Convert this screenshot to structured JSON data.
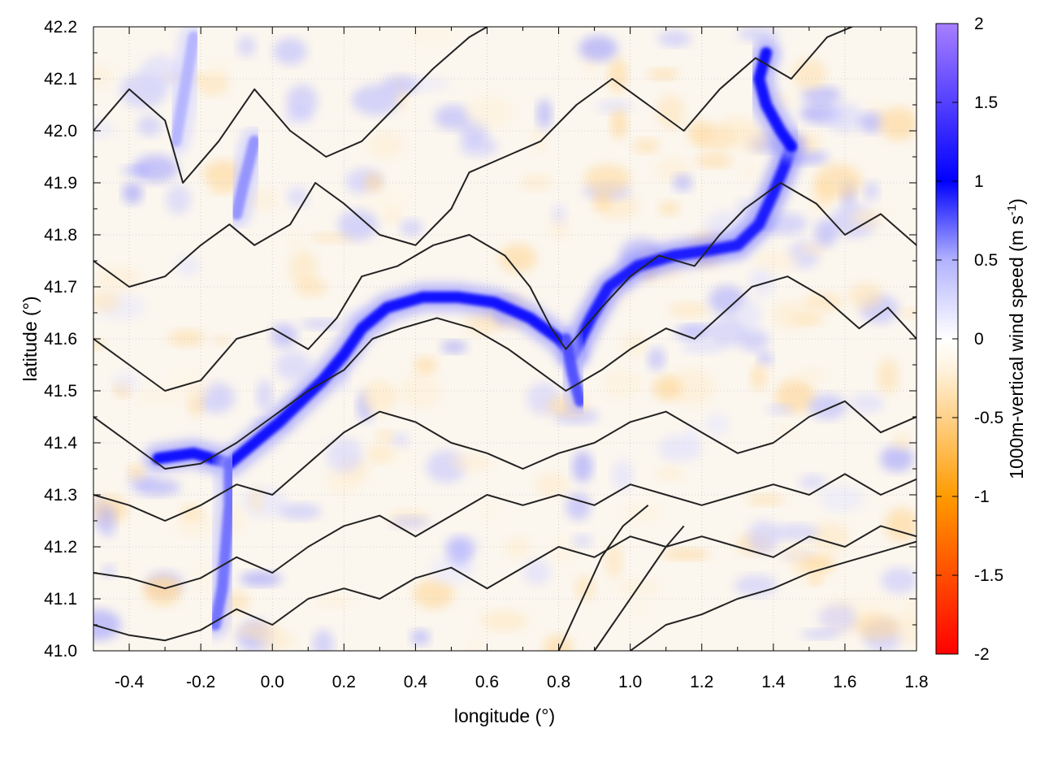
{
  "chart_data": {
    "type": "heatmap",
    "xlabel": "longitude (°)",
    "ylabel": "latitude (°)",
    "xlim": [
      -0.5,
      1.8
    ],
    "ylim": [
      41.0,
      42.2
    ],
    "xticks": [
      -0.4,
      -0.2,
      0.0,
      0.2,
      0.4,
      0.6,
      0.8,
      1.0,
      1.2,
      1.4,
      1.6,
      1.8
    ],
    "xtick_labels": [
      "-0.4",
      "-0.2",
      "0.0",
      "0.2",
      "0.4",
      "0.6",
      "0.8",
      "1.0",
      "1.2",
      "1.4",
      "1.6",
      "1.8"
    ],
    "yticks": [
      41.0,
      41.1,
      41.2,
      41.3,
      41.4,
      41.5,
      41.6,
      41.7,
      41.8,
      41.9,
      42.0,
      42.1,
      42.2
    ],
    "ytick_labels": [
      "41.0",
      "41.1",
      "41.2",
      "41.3",
      "41.4",
      "41.5",
      "41.6",
      "41.7",
      "41.8",
      "41.9",
      "42.0",
      "42.1",
      "42.2"
    ],
    "grid": true,
    "colorbar": {
      "label": "1000m-vertical wind speed (m s",
      "label_superscript": "-1",
      "label_suffix": ")",
      "range": [
        -2,
        2
      ],
      "ticks": [
        2,
        1.5,
        1,
        0.5,
        0,
        -0.5,
        -1,
        -1.5,
        -2
      ],
      "tick_labels": [
        "2",
        "1.5",
        "1",
        "0.5",
        "0",
        "-0.5",
        "-1",
        "-1.5",
        "-2"
      ],
      "colors": {
        "min": "#ff0000",
        "low": "#ff9b00",
        "near_zero_neg": "#fff2dc",
        "zero": "#ffffff",
        "mid": "#b2b2ff",
        "high": "#0000ff",
        "max": "#a77fff"
      }
    },
    "wind_bands": [
      {
        "name": "band-main-west",
        "value": 1.0,
        "points": [
          [
            -0.32,
            41.37
          ],
          [
            -0.22,
            41.38
          ],
          [
            -0.12,
            41.36
          ],
          [
            -0.05,
            41.4
          ],
          [
            0.02,
            41.44
          ],
          [
            0.08,
            41.48
          ],
          [
            0.14,
            41.52
          ],
          [
            0.2,
            41.57
          ],
          [
            0.25,
            41.62
          ],
          [
            0.32,
            41.66
          ],
          [
            0.42,
            41.68
          ],
          [
            0.52,
            41.68
          ],
          [
            0.62,
            41.67
          ],
          [
            0.72,
            41.64
          ],
          [
            0.8,
            41.6
          ],
          [
            0.84,
            41.57
          ]
        ]
      },
      {
        "name": "band-main-east",
        "value": 1.1,
        "points": [
          [
            0.84,
            41.57
          ],
          [
            0.89,
            41.64
          ],
          [
            0.94,
            41.7
          ],
          [
            1.02,
            41.74
          ],
          [
            1.12,
            41.76
          ],
          [
            1.22,
            41.77
          ],
          [
            1.3,
            41.78
          ],
          [
            1.36,
            41.82
          ],
          [
            1.4,
            41.88
          ],
          [
            1.43,
            41.93
          ],
          [
            1.45,
            41.97
          ]
        ]
      },
      {
        "name": "band-north-east",
        "value": 1.0,
        "points": [
          [
            1.45,
            41.97
          ],
          [
            1.42,
            42.0
          ],
          [
            1.38,
            42.05
          ],
          [
            1.36,
            42.1
          ],
          [
            1.38,
            42.15
          ]
        ]
      },
      {
        "name": "band-south-spur",
        "value": 0.8,
        "points": [
          [
            0.82,
            41.6
          ],
          [
            0.84,
            41.53
          ],
          [
            0.86,
            41.48
          ]
        ]
      },
      {
        "name": "band-south-west",
        "value": 0.7,
        "points": [
          [
            -0.12,
            41.36
          ],
          [
            -0.12,
            41.28
          ],
          [
            -0.13,
            41.2
          ],
          [
            -0.14,
            41.12
          ],
          [
            -0.16,
            41.05
          ]
        ]
      },
      {
        "name": "band-north-west",
        "value": 0.6,
        "points": [
          [
            -0.05,
            41.98
          ],
          [
            -0.08,
            41.9
          ],
          [
            -0.1,
            41.84
          ]
        ]
      },
      {
        "name": "band-north-west-2",
        "value": 0.5,
        "points": [
          [
            -0.22,
            42.18
          ],
          [
            -0.25,
            42.06
          ],
          [
            -0.27,
            41.98
          ]
        ]
      }
    ],
    "terrain_contours": [
      {
        "name": "contour-1",
        "points": [
          [
            -0.5,
            42.0
          ],
          [
            -0.4,
            42.08
          ],
          [
            -0.3,
            42.02
          ],
          [
            -0.25,
            41.9
          ],
          [
            -0.15,
            41.98
          ],
          [
            -0.05,
            42.08
          ],
          [
            0.05,
            42.0
          ],
          [
            0.15,
            41.95
          ],
          [
            0.25,
            41.98
          ],
          [
            0.35,
            42.05
          ],
          [
            0.45,
            42.12
          ],
          [
            0.55,
            42.18
          ],
          [
            0.6,
            42.2
          ]
        ]
      },
      {
        "name": "contour-2",
        "points": [
          [
            -0.5,
            41.75
          ],
          [
            -0.4,
            41.7
          ],
          [
            -0.3,
            41.72
          ],
          [
            -0.2,
            41.78
          ],
          [
            -0.12,
            41.82
          ],
          [
            -0.05,
            41.78
          ],
          [
            0.05,
            41.82
          ],
          [
            0.12,
            41.9
          ],
          [
            0.2,
            41.86
          ],
          [
            0.3,
            41.8
          ],
          [
            0.4,
            41.78
          ],
          [
            0.5,
            41.85
          ],
          [
            0.55,
            41.92
          ],
          [
            0.65,
            41.95
          ],
          [
            0.75,
            41.98
          ],
          [
            0.85,
            42.05
          ],
          [
            0.95,
            42.1
          ],
          [
            1.05,
            42.05
          ],
          [
            1.15,
            42.0
          ],
          [
            1.25,
            42.08
          ],
          [
            1.35,
            42.14
          ],
          [
            1.45,
            42.1
          ],
          [
            1.55,
            42.18
          ],
          [
            1.62,
            42.2
          ]
        ]
      },
      {
        "name": "contour-3",
        "points": [
          [
            -0.5,
            41.6
          ],
          [
            -0.4,
            41.55
          ],
          [
            -0.3,
            41.5
          ],
          [
            -0.2,
            41.52
          ],
          [
            -0.1,
            41.6
          ],
          [
            0.0,
            41.62
          ],
          [
            0.1,
            41.58
          ],
          [
            0.18,
            41.64
          ],
          [
            0.25,
            41.72
          ],
          [
            0.35,
            41.74
          ],
          [
            0.45,
            41.78
          ],
          [
            0.55,
            41.8
          ],
          [
            0.65,
            41.76
          ],
          [
            0.72,
            41.7
          ],
          [
            0.78,
            41.62
          ],
          [
            0.82,
            41.58
          ],
          [
            0.92,
            41.66
          ],
          [
            1.0,
            41.72
          ],
          [
            1.08,
            41.76
          ],
          [
            1.18,
            41.74
          ],
          [
            1.25,
            41.8
          ],
          [
            1.32,
            41.85
          ],
          [
            1.42,
            41.9
          ],
          [
            1.52,
            41.86
          ],
          [
            1.6,
            41.8
          ],
          [
            1.7,
            41.84
          ],
          [
            1.8,
            41.78
          ]
        ]
      },
      {
        "name": "contour-4",
        "points": [
          [
            -0.5,
            41.45
          ],
          [
            -0.4,
            41.4
          ],
          [
            -0.3,
            41.35
          ],
          [
            -0.2,
            41.36
          ],
          [
            -0.1,
            41.4
          ],
          [
            0.0,
            41.45
          ],
          [
            0.1,
            41.5
          ],
          [
            0.2,
            41.54
          ],
          [
            0.28,
            41.6
          ],
          [
            0.36,
            41.62
          ],
          [
            0.46,
            41.64
          ],
          [
            0.56,
            41.62
          ],
          [
            0.66,
            41.58
          ],
          [
            0.74,
            41.54
          ],
          [
            0.82,
            41.5
          ],
          [
            0.92,
            41.54
          ],
          [
            1.0,
            41.58
          ],
          [
            1.1,
            41.62
          ],
          [
            1.18,
            41.6
          ],
          [
            1.26,
            41.65
          ],
          [
            1.34,
            41.7
          ],
          [
            1.44,
            41.72
          ],
          [
            1.54,
            41.68
          ],
          [
            1.64,
            41.62
          ],
          [
            1.72,
            41.66
          ],
          [
            1.8,
            41.6
          ]
        ]
      },
      {
        "name": "contour-5",
        "points": [
          [
            -0.5,
            41.3
          ],
          [
            -0.4,
            41.28
          ],
          [
            -0.3,
            41.25
          ],
          [
            -0.2,
            41.28
          ],
          [
            -0.1,
            41.32
          ],
          [
            0.0,
            41.3
          ],
          [
            0.1,
            41.36
          ],
          [
            0.2,
            41.42
          ],
          [
            0.3,
            41.46
          ],
          [
            0.4,
            41.44
          ],
          [
            0.5,
            41.4
          ],
          [
            0.6,
            41.38
          ],
          [
            0.7,
            41.35
          ],
          [
            0.8,
            41.38
          ],
          [
            0.9,
            41.4
          ],
          [
            1.0,
            41.44
          ],
          [
            1.1,
            41.46
          ],
          [
            1.2,
            41.42
          ],
          [
            1.3,
            41.38
          ],
          [
            1.4,
            41.4
          ],
          [
            1.5,
            41.45
          ],
          [
            1.6,
            41.48
          ],
          [
            1.7,
            41.42
          ],
          [
            1.8,
            41.45
          ]
        ]
      },
      {
        "name": "contour-6",
        "points": [
          [
            -0.5,
            41.15
          ],
          [
            -0.4,
            41.14
          ],
          [
            -0.3,
            41.12
          ],
          [
            -0.2,
            41.14
          ],
          [
            -0.1,
            41.18
          ],
          [
            0.0,
            41.15
          ],
          [
            0.1,
            41.2
          ],
          [
            0.2,
            41.24
          ],
          [
            0.3,
            41.26
          ],
          [
            0.4,
            41.22
          ],
          [
            0.5,
            41.26
          ],
          [
            0.6,
            41.3
          ],
          [
            0.7,
            41.28
          ],
          [
            0.8,
            41.3
          ],
          [
            0.9,
            41.28
          ],
          [
            1.0,
            41.32
          ],
          [
            1.1,
            41.3
          ],
          [
            1.2,
            41.28
          ],
          [
            1.3,
            41.3
          ],
          [
            1.4,
            41.32
          ],
          [
            1.5,
            41.3
          ],
          [
            1.6,
            41.34
          ],
          [
            1.7,
            41.3
          ],
          [
            1.8,
            41.33
          ]
        ]
      },
      {
        "name": "contour-7",
        "points": [
          [
            -0.5,
            41.05
          ],
          [
            -0.4,
            41.03
          ],
          [
            -0.3,
            41.02
          ],
          [
            -0.2,
            41.04
          ],
          [
            -0.1,
            41.08
          ],
          [
            0.0,
            41.05
          ],
          [
            0.1,
            41.1
          ],
          [
            0.2,
            41.12
          ],
          [
            0.3,
            41.1
          ],
          [
            0.4,
            41.14
          ],
          [
            0.5,
            41.16
          ],
          [
            0.6,
            41.12
          ],
          [
            0.7,
            41.16
          ],
          [
            0.8,
            41.2
          ],
          [
            0.9,
            41.18
          ],
          [
            1.0,
            41.22
          ],
          [
            1.1,
            41.2
          ],
          [
            1.2,
            41.22
          ],
          [
            1.3,
            41.2
          ],
          [
            1.4,
            41.18
          ],
          [
            1.5,
            41.22
          ],
          [
            1.6,
            41.2
          ],
          [
            1.7,
            41.24
          ],
          [
            1.8,
            41.22
          ]
        ]
      },
      {
        "name": "contour-8",
        "points": [
          [
            0.9,
            41.0
          ],
          [
            0.95,
            41.05
          ],
          [
            1.0,
            41.1
          ],
          [
            1.05,
            41.15
          ],
          [
            1.1,
            41.2
          ],
          [
            1.15,
            41.24
          ]
        ]
      },
      {
        "name": "contour-9",
        "points": [
          [
            0.8,
            41.0
          ],
          [
            0.84,
            41.06
          ],
          [
            0.88,
            41.12
          ],
          [
            0.92,
            41.18
          ],
          [
            0.98,
            41.24
          ],
          [
            1.05,
            41.28
          ]
        ]
      },
      {
        "name": "contour-10",
        "points": [
          [
            1.0,
            41.0
          ],
          [
            1.1,
            41.05
          ],
          [
            1.2,
            41.07
          ],
          [
            1.3,
            41.1
          ],
          [
            1.4,
            41.12
          ],
          [
            1.5,
            41.15
          ],
          [
            1.6,
            41.17
          ],
          [
            1.7,
            41.19
          ],
          [
            1.8,
            41.21
          ]
        ]
      }
    ]
  }
}
